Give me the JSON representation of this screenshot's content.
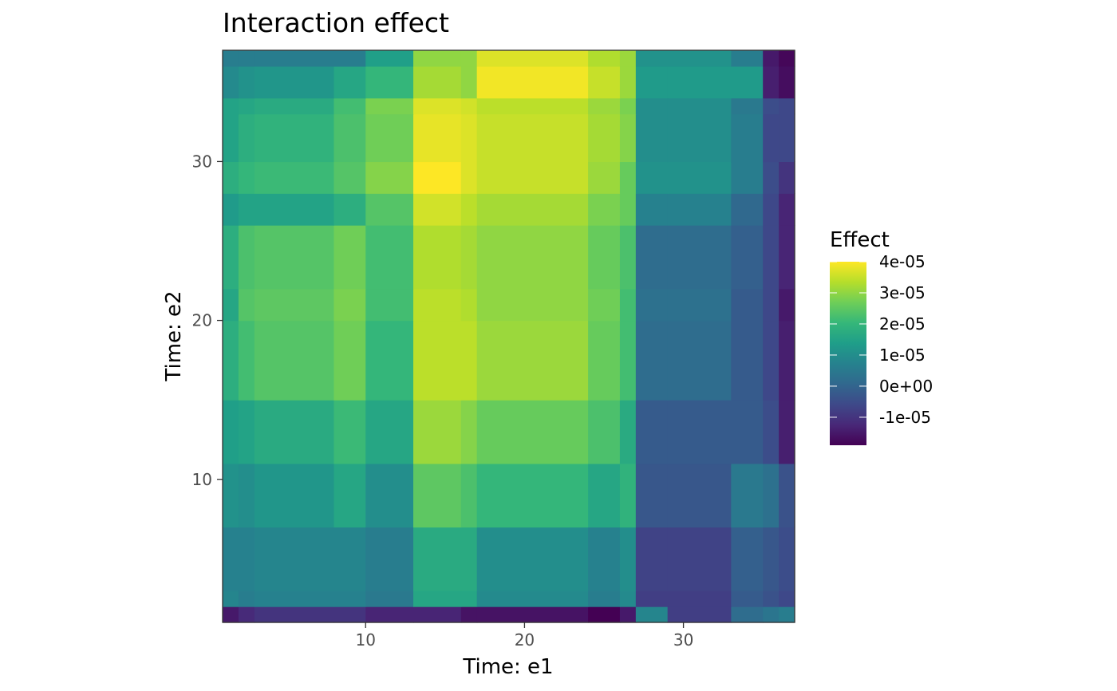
{
  "chart_data": {
    "type": "heatmap",
    "title": "Interaction effect",
    "xlabel": "Time: e1",
    "ylabel": "Time: e2",
    "xlim": [
      1,
      37
    ],
    "ylim": [
      1,
      37
    ],
    "x_ticks": [
      10,
      20,
      30
    ],
    "y_ticks": [
      10,
      20,
      30
    ],
    "x_tick_labels": [
      "10",
      "20",
      "30"
    ],
    "y_tick_labels": [
      "10",
      "20",
      "30"
    ],
    "grid": false,
    "x_breaks": [
      1,
      2,
      3,
      8,
      10,
      13,
      16,
      17,
      24,
      26,
      27,
      29,
      33,
      35,
      36,
      37
    ],
    "y_breaks": [
      1,
      2,
      3,
      7,
      11,
      15,
      20,
      22,
      26,
      28,
      30,
      33,
      34,
      36,
      37
    ],
    "z": [
      [
        -1.5e-05,
        -1.2e-05,
        -1e-05,
        -1e-05,
        -1.3e-05,
        -1.3e-05,
        -1.6e-05,
        -1.6e-05,
        -1.9e-05,
        -1.5e-05,
        8e-06,
        -8e-06,
        2e-06,
        4e-06,
        6e-06
      ],
      [
        8e-06,
        6e-06,
        7e-06,
        7e-06,
        5e-06,
        1.6e-05,
        1.6e-05,
        9e-06,
        6e-06,
        9e-06,
        -8e-06,
        -8e-06,
        -2e-06,
        -4e-06,
        -6e-06
      ],
      [
        7e-06,
        7e-06,
        8e-06,
        8e-06,
        6e-06,
        1.7e-05,
        1.7e-05,
        1e-05,
        7e-06,
        1e-05,
        -7e-06,
        -7e-06,
        -1e-06,
        -3e-06,
        -5e-06
      ],
      [
        1.1e-05,
        1e-05,
        1.2e-05,
        1.6e-05,
        1e-05,
        2.5e-05,
        2.3e-05,
        2e-05,
        1.6e-05,
        1.9e-05,
        -3e-06,
        -3e-06,
        5e-06,
        3e-06,
        -4e-06
      ],
      [
        1.4e-05,
        1.5e-05,
        1.7e-05,
        2.1e-05,
        1.6e-05,
        3.1e-05,
        2.9e-05,
        2.6e-05,
        2.3e-05,
        1.7e-05,
        -2e-06,
        -2e-06,
        -2e-06,
        -5e-06,
        -1.4e-05
      ],
      [
        1.8e-05,
        2.2e-05,
        2.4e-05,
        2.7e-05,
        2e-05,
        3.4e-05,
        3.4e-05,
        3.1e-05,
        2.6e-05,
        2.2e-05,
        2e-06,
        2e-06,
        -2e-06,
        -6e-06,
        -1.4e-05
      ],
      [
        1.6e-05,
        2.4e-05,
        2.5e-05,
        2.8e-05,
        2.2e-05,
        3.4e-05,
        3.3e-05,
        3e-05,
        2.7e-05,
        2.2e-05,
        3e-06,
        3e-06,
        -2e-06,
        -6e-06,
        -1.5e-05
      ],
      [
        1.8e-05,
        2.3e-05,
        2.4e-05,
        2.7e-05,
        2.2e-05,
        3.3e-05,
        3.2e-05,
        3e-05,
        2.6e-05,
        2.3e-05,
        2e-06,
        2e-06,
        -1e-06,
        -6e-06,
        -1.3e-05
      ],
      [
        1.3e-05,
        1.5e-05,
        1.5e-05,
        1.8e-05,
        2.4e-05,
        3.6e-05,
        3.4e-05,
        3.2e-05,
        2.8e-05,
        2.6e-05,
        7e-06,
        7e-06,
        1e-06,
        -6e-06,
        -1.3e-05
      ],
      [
        1.8e-05,
        2e-05,
        2.1e-05,
        2.4e-05,
        2.9e-05,
        4e-05,
        3.7e-05,
        3.5e-05,
        3.1e-05,
        2.6e-05,
        1.1e-05,
        1.1e-05,
        6e-06,
        -5e-06,
        -1e-05
      ],
      [
        1.5e-05,
        1.8e-05,
        1.9e-05,
        2.3e-05,
        2.7e-05,
        3.8e-05,
        3.7e-05,
        3.5e-05,
        3.2e-05,
        2.9e-05,
        1e-05,
        1e-05,
        6e-06,
        -6e-06,
        -6e-06
      ],
      [
        1.5e-05,
        1.6e-05,
        1.7e-05,
        2.2e-05,
        2.8e-05,
        3.7e-05,
        3.6e-05,
        3.4e-05,
        3.1e-05,
        2.8e-05,
        1e-05,
        1e-05,
        5e-06,
        -5e-06,
        -6e-06
      ],
      [
        9e-06,
        1.1e-05,
        1.2e-05,
        1.6e-05,
        2e-05,
        3.2e-05,
        3e-05,
        3.9e-05,
        3.5e-05,
        3.1e-05,
        1.3e-05,
        1.3e-05,
        1.3e-05,
        -1.4e-05,
        -1.7e-05
      ],
      [
        6e-06,
        6e-06,
        6e-06,
        6e-06,
        1.4e-05,
        3e-05,
        3e-05,
        3.7e-05,
        3.3e-05,
        3.1e-05,
        1.1e-05,
        1.1e-05,
        6e-06,
        -1.5e-05,
        -1.8e-05
      ],
      [
        1e-06,
        3e-06,
        3e-06,
        3e-06,
        1.2e-05,
        3e-05,
        3e-05,
        3.1e-05,
        2.8e-05,
        2.5e-05,
        5e-06,
        5e-06,
        3e-06,
        -1.3e-05,
        -3e-06
      ]
    ],
    "legend": {
      "title": "Effect",
      "position": "right",
      "colorscale": "viridis",
      "limits": [
        -1.9e-05,
        4e-05
      ],
      "breaks": [
        4e-05,
        3e-05,
        2e-05,
        1e-05,
        0,
        -1e-05
      ],
      "labels": [
        "4e-05",
        "3e-05",
        "2e-05",
        "1e-05",
        "0e+00",
        "-1e-05"
      ]
    },
    "colors": {
      "panel_border": "#333333",
      "tick": "#333333",
      "tick_label": "#4d4d4d",
      "viridis": [
        "#440154",
        "#482878",
        "#3e4989",
        "#31688e",
        "#26828e",
        "#1f9e89",
        "#35b779",
        "#6ece58",
        "#b5de2b",
        "#fde725"
      ]
    }
  }
}
